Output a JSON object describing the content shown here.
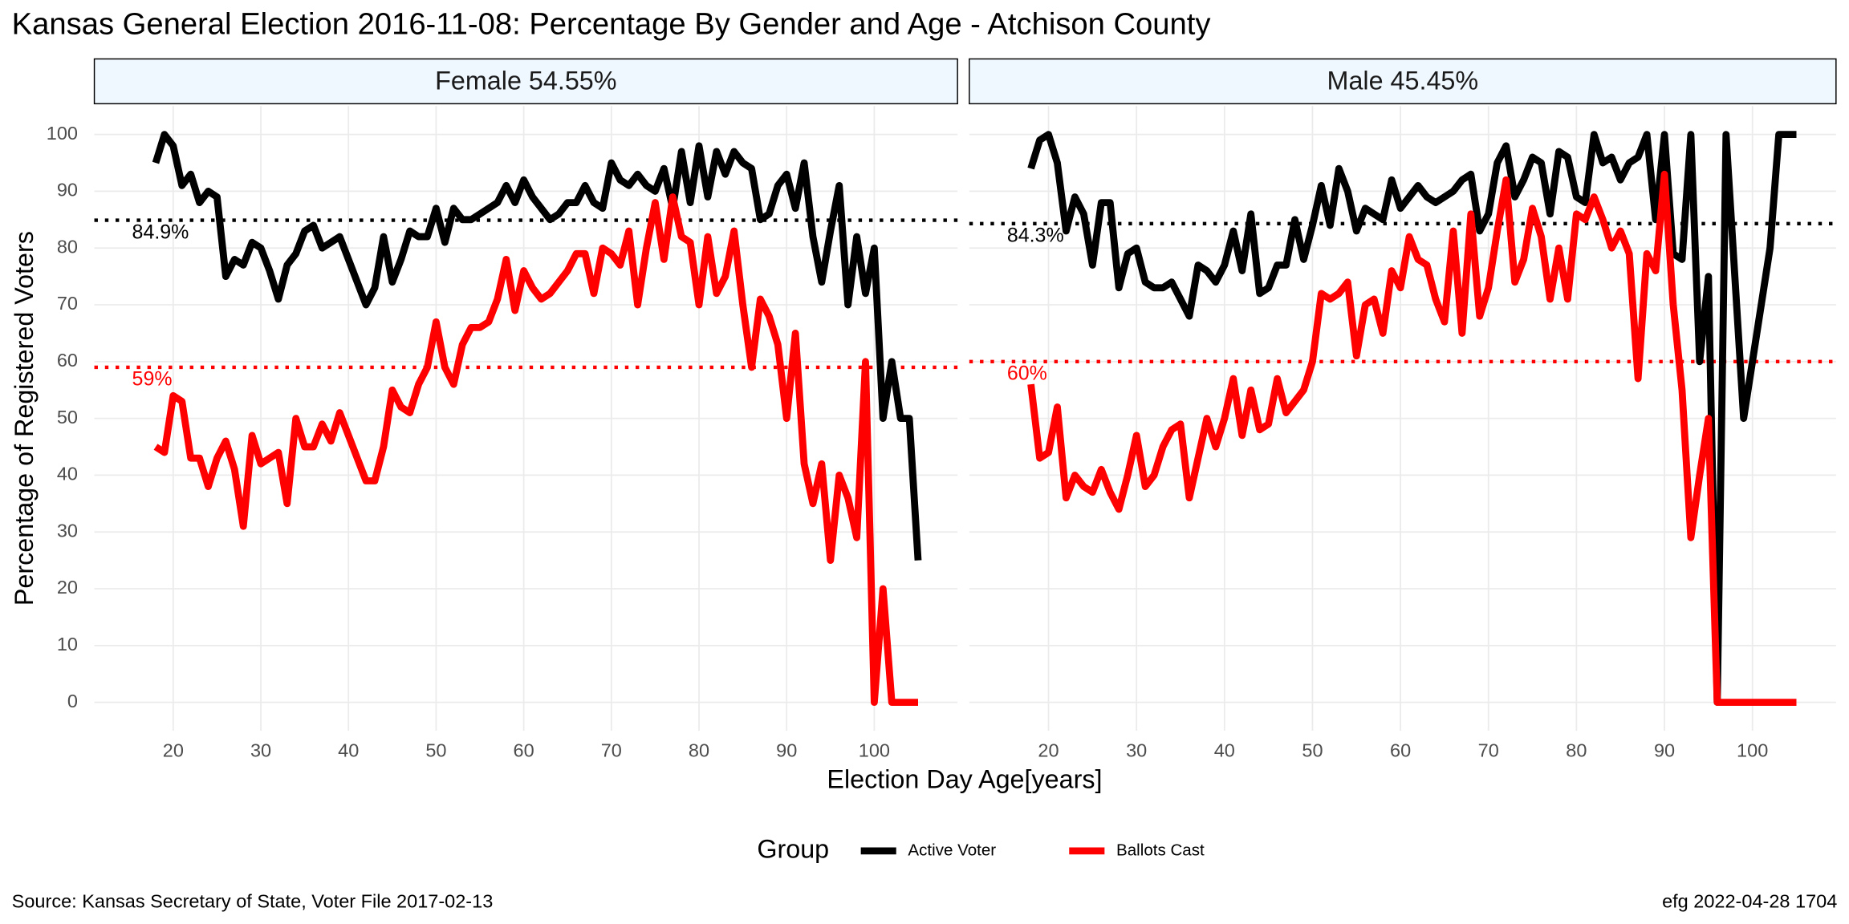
{
  "title": "Kansas General Election 2016-11-08:  Percentage By Gender and Age - Atchison County",
  "x_label": "Election Day Age[years]",
  "y_label": "Percentage of Registered Voters",
  "legend_title": "Group",
  "source": "Source:  Kansas Secretary of State, Voter File  2017-02-13",
  "credit": "efg 2022-04-28 1704",
  "chart_data": [
    {
      "type": "line",
      "title": "Female 54.55%",
      "x": [
        18,
        19,
        20,
        21,
        22,
        23,
        24,
        25,
        26,
        27,
        28,
        29,
        30,
        31,
        32,
        33,
        34,
        35,
        36,
        37,
        38,
        39,
        40,
        41,
        42,
        43,
        44,
        45,
        46,
        47,
        48,
        49,
        50,
        51,
        52,
        53,
        54,
        55,
        56,
        57,
        58,
        59,
        60,
        61,
        62,
        63,
        64,
        65,
        66,
        67,
        68,
        69,
        70,
        71,
        72,
        73,
        74,
        75,
        76,
        77,
        78,
        79,
        80,
        81,
        82,
        83,
        84,
        85,
        86,
        87,
        88,
        89,
        90,
        91,
        92,
        93,
        94,
        95,
        96,
        97,
        98,
        99,
        100,
        101,
        102,
        103,
        104,
        105
      ],
      "series": [
        {
          "name": "Active Voter",
          "color": "#000000",
          "values": [
            95,
            100,
            98,
            91,
            93,
            88,
            90,
            89,
            75,
            78,
            77,
            81,
            80,
            76,
            71,
            77,
            79,
            83,
            84,
            80,
            81,
            82,
            78,
            74,
            70,
            73,
            82,
            74,
            78,
            83,
            82,
            82,
            87,
            81,
            87,
            85,
            85,
            86,
            87,
            88,
            91,
            88,
            92,
            89,
            87,
            85,
            86,
            88,
            88,
            91,
            88,
            87,
            95,
            92,
            91,
            93,
            91,
            90,
            94,
            87,
            97,
            88,
            98,
            89,
            97,
            93,
            97,
            95,
            94,
            85,
            86,
            91,
            93,
            87,
            95,
            82,
            74,
            83,
            91,
            70,
            82,
            72,
            80,
            50,
            60,
            50,
            50,
            25
          ]
        },
        {
          "name": "Ballots Cast",
          "color": "#ff0000",
          "values": [
            45,
            44,
            54,
            53,
            43,
            43,
            38,
            43,
            46,
            41,
            31,
            47,
            42,
            43,
            44,
            35,
            50,
            45,
            45,
            49,
            46,
            51,
            47,
            43,
            39,
            39,
            45,
            55,
            52,
            51,
            56,
            59,
            67,
            59,
            56,
            63,
            66,
            66,
            67,
            71,
            78,
            69,
            76,
            73,
            71,
            72,
            74,
            76,
            79,
            79,
            72,
            80,
            79,
            77,
            83,
            70,
            80,
            88,
            78,
            89,
            82,
            81,
            70,
            82,
            72,
            75,
            83,
            70,
            59,
            71,
            68,
            63,
            50,
            65,
            42,
            35,
            42,
            25,
            40,
            36,
            29,
            60,
            0,
            20,
            0,
            0,
            0,
            0
          ]
        }
      ],
      "hlines": [
        {
          "value": 84.9,
          "label": "84.9%",
          "color": "#000000"
        },
        {
          "value": 59,
          "label": "59%",
          "color": "#ff0000"
        }
      ],
      "xlim": [
        11,
        109.5
      ],
      "ylim": [
        -5,
        105
      ],
      "xticks": [
        20,
        30,
        40,
        50,
        60,
        70,
        80,
        90,
        100
      ],
      "yticks": [
        0,
        10,
        20,
        30,
        40,
        50,
        60,
        70,
        80,
        90,
        100
      ],
      "grid": true
    },
    {
      "type": "line",
      "title": "Male 45.45%",
      "x": [
        18,
        19,
        20,
        21,
        22,
        23,
        24,
        25,
        26,
        27,
        28,
        29,
        30,
        31,
        32,
        33,
        34,
        35,
        36,
        37,
        38,
        39,
        40,
        41,
        42,
        43,
        44,
        45,
        46,
        47,
        48,
        49,
        50,
        51,
        52,
        53,
        54,
        55,
        56,
        57,
        58,
        59,
        60,
        61,
        62,
        63,
        64,
        65,
        66,
        67,
        68,
        69,
        70,
        71,
        72,
        73,
        74,
        75,
        76,
        77,
        78,
        79,
        80,
        81,
        82,
        83,
        84,
        85,
        86,
        87,
        88,
        89,
        90,
        91,
        92,
        93,
        94,
        95,
        96,
        97,
        98,
        99,
        100,
        101,
        102,
        103,
        104,
        105
      ],
      "series": [
        {
          "name": "Active Voter",
          "color": "#000000",
          "values": [
            94,
            99,
            100,
            95,
            83,
            89,
            86,
            77,
            88,
            88,
            73,
            79,
            80,
            74,
            73,
            73,
            74,
            71,
            68,
            77,
            76,
            74,
            77,
            83,
            76,
            86,
            72,
            73,
            77,
            77,
            85,
            78,
            84,
            91,
            84,
            94,
            90,
            83,
            87,
            86,
            85,
            92,
            87,
            89,
            91,
            89,
            88,
            89,
            90,
            92,
            93,
            83,
            86,
            95,
            98,
            89,
            92,
            96,
            95,
            86,
            97,
            96,
            89,
            88,
            100,
            95,
            96,
            92,
            95,
            96,
            100,
            85,
            100,
            79,
            78,
            100,
            60,
            75,
            0,
            100,
            75,
            50,
            60,
            70,
            80,
            100,
            100,
            100
          ]
        },
        {
          "name": "Ballots Cast",
          "color": "#ff0000",
          "values": [
            56,
            43,
            44,
            52,
            36,
            40,
            38,
            37,
            41,
            37,
            34,
            40,
            47,
            38,
            40,
            45,
            48,
            49,
            36,
            43,
            50,
            45,
            50,
            57,
            47,
            55,
            48,
            49,
            57,
            51,
            53,
            55,
            60,
            72,
            71,
            72,
            74,
            61,
            70,
            71,
            65,
            76,
            73,
            82,
            78,
            77,
            71,
            67,
            83,
            65,
            86,
            68,
            73,
            83,
            92,
            74,
            78,
            87,
            82,
            71,
            80,
            71,
            86,
            85,
            89,
            85,
            80,
            83,
            79,
            57,
            79,
            76,
            93,
            70,
            55,
            29,
            40,
            50,
            0,
            0,
            0,
            0,
            0,
            0,
            0,
            0,
            0,
            0
          ]
        }
      ],
      "hlines": [
        {
          "value": 84.3,
          "label": "84.3%",
          "color": "#000000"
        },
        {
          "value": 60,
          "label": "60%",
          "color": "#ff0000"
        }
      ],
      "xlim": [
        11,
        109.5
      ],
      "ylim": [
        -5,
        105
      ],
      "xticks": [
        20,
        30,
        40,
        50,
        60,
        70,
        80,
        90,
        100
      ],
      "yticks": [
        0,
        10,
        20,
        30,
        40,
        50,
        60,
        70,
        80,
        90,
        100
      ],
      "grid": true
    }
  ]
}
